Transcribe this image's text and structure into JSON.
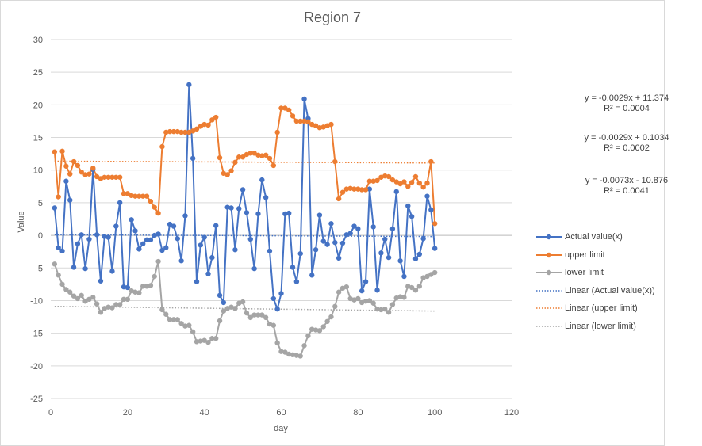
{
  "chart_data": {
    "type": "line",
    "title": "Region 7",
    "xlabel": "day",
    "ylabel": "Value",
    "xlim": [
      0,
      120
    ],
    "ylim": [
      -25,
      30
    ],
    "x_ticks": [
      0,
      20,
      40,
      60,
      80,
      100,
      120
    ],
    "y_ticks": [
      -25,
      -20,
      -15,
      -10,
      -5,
      0,
      5,
      10,
      15,
      20,
      25,
      30
    ],
    "grid": true,
    "legend_position": "right",
    "x": [
      1,
      2,
      3,
      4,
      5,
      6,
      7,
      8,
      9,
      10,
      11,
      12,
      13,
      14,
      15,
      16,
      17,
      18,
      19,
      20,
      21,
      22,
      23,
      24,
      25,
      26,
      27,
      28,
      29,
      30,
      31,
      32,
      33,
      34,
      35,
      36,
      37,
      38,
      39,
      40,
      41,
      42,
      43,
      44,
      45,
      46,
      47,
      48,
      49,
      50,
      51,
      52,
      53,
      54,
      55,
      56,
      57,
      58,
      59,
      60,
      61,
      62,
      63,
      64,
      65,
      66,
      67,
      68,
      69,
      70,
      71,
      72,
      73,
      74,
      75,
      76,
      77,
      78,
      79,
      80,
      81,
      82,
      83,
      84,
      85,
      86,
      87,
      88,
      89,
      90,
      91,
      92,
      93,
      94,
      95,
      96,
      97,
      98,
      99,
      100
    ],
    "series": [
      {
        "name": "Actual value(x)",
        "color": "#4472c4",
        "marker": "circle",
        "values": [
          4.2,
          -1.9,
          -2.4,
          8.3,
          5.4,
          -4.9,
          -1.3,
          0.1,
          -5.1,
          -0.6,
          10.1,
          0.1,
          -7.0,
          -0.2,
          -0.3,
          -5.5,
          1.4,
          5.0,
          -7.9,
          -8.0,
          2.4,
          0.7,
          -2.1,
          -1.3,
          -0.7,
          -0.7,
          0.0,
          0.2,
          -2.3,
          -1.9,
          1.7,
          1.4,
          -0.5,
          -3.9,
          3.0,
          23.1,
          11.8,
          -7.1,
          -1.5,
          -0.3,
          -5.9,
          -3.4,
          1.5,
          -9.2,
          -10.3,
          4.3,
          4.2,
          -2.2,
          4.1,
          7.0,
          3.5,
          -0.6,
          -5.1,
          3.3,
          8.5,
          5.8,
          -2.4,
          -9.7,
          -11.3,
          -8.9,
          3.3,
          3.4,
          -4.9,
          -7.1,
          -2.8,
          20.9,
          17.9,
          -6.1,
          -2.2,
          3.1,
          -0.9,
          -1.4,
          1.8,
          -1.1,
          -3.5,
          -1.2,
          0.1,
          0.3,
          1.4,
          1.0,
          -8.5,
          -7.1,
          7.1,
          1.3,
          -8.4,
          -2.7,
          -0.6,
          -3.4,
          1.0,
          6.7,
          -3.9,
          -6.3,
          4.5,
          2.9,
          -3.6,
          -2.9,
          -0.5,
          6.0,
          3.9,
          -2.0
        ]
      },
      {
        "name": "upper limit",
        "color": "#ed7d31",
        "marker": "circle",
        "values": [
          12.8,
          5.9,
          12.9,
          10.6,
          9.4,
          11.3,
          10.7,
          9.7,
          9.3,
          9.4,
          10.3,
          9.0,
          8.7,
          8.9,
          8.9,
          8.9,
          8.9,
          8.9,
          6.4,
          6.4,
          6.1,
          6.0,
          6.0,
          6.0,
          6.0,
          5.2,
          4.3,
          3.4,
          13.6,
          15.8,
          15.9,
          15.9,
          15.9,
          15.8,
          15.8,
          15.8,
          16.0,
          16.3,
          16.7,
          17.0,
          16.9,
          17.7,
          18.1,
          11.9,
          9.5,
          9.3,
          9.9,
          11.2,
          12.0,
          12.0,
          12.4,
          12.6,
          12.6,
          12.3,
          12.2,
          12.3,
          11.8,
          10.7,
          15.8,
          19.5,
          19.5,
          19.2,
          18.3,
          17.5,
          17.5,
          17.5,
          17.4,
          17.0,
          16.8,
          16.5,
          16.6,
          16.8,
          17.0,
          11.3,
          5.6,
          6.6,
          7.1,
          7.2,
          7.1,
          7.1,
          7.0,
          7.0,
          8.3,
          8.3,
          8.4,
          8.9,
          9.1,
          9.0,
          8.5,
          8.2,
          7.9,
          8.2,
          7.5,
          8.1,
          9.0,
          8.0,
          7.4,
          8.0,
          11.3,
          1.8
        ]
      },
      {
        "name": "lower limit",
        "color": "#a5a5a5",
        "marker": "circle",
        "values": [
          -4.4,
          -6.1,
          -7.5,
          -8.3,
          -8.7,
          -9.3,
          -9.7,
          -9.2,
          -10.1,
          -9.8,
          -9.5,
          -10.5,
          -11.8,
          -11.2,
          -11.0,
          -11.1,
          -10.6,
          -10.6,
          -9.8,
          -9.8,
          -8.5,
          -8.7,
          -8.8,
          -7.8,
          -7.8,
          -7.7,
          -6.3,
          -4.0,
          -11.4,
          -12.1,
          -12.9,
          -12.9,
          -12.9,
          -13.5,
          -13.9,
          -13.8,
          -14.8,
          -16.3,
          -16.2,
          -16.1,
          -16.4,
          -15.8,
          -15.8,
          -13.1,
          -11.6,
          -11.2,
          -11.0,
          -11.2,
          -10.4,
          -10.2,
          -11.9,
          -12.6,
          -12.2,
          -12.2,
          -12.2,
          -12.6,
          -13.6,
          -13.8,
          -16.5,
          -17.8,
          -17.9,
          -18.2,
          -18.3,
          -18.4,
          -18.5,
          -16.9,
          -15.4,
          -14.4,
          -14.5,
          -14.6,
          -14.0,
          -13.2,
          -12.5,
          -10.9,
          -8.7,
          -8.1,
          -7.9,
          -9.7,
          -9.9,
          -9.7,
          -10.3,
          -10.1,
          -10.0,
          -10.4,
          -11.3,
          -11.4,
          -11.3,
          -11.8,
          -10.6,
          -9.6,
          -9.4,
          -9.5,
          -7.8,
          -8.0,
          -8.4,
          -7.8,
          -6.5,
          -6.3,
          -6.0,
          -5.7
        ]
      }
    ],
    "trendlines": [
      {
        "name": "Linear (Actual value(x))",
        "color": "#4472c4",
        "slope": -0.0029,
        "intercept": 0.1034,
        "equation": "y = -0.0029x + 0.1034",
        "r2": "R² = 0.0002"
      },
      {
        "name": "Linear (upper limit)",
        "color": "#ed7d31",
        "slope": -0.0029,
        "intercept": 11.374,
        "equation": "y = -0.0029x + 11.374",
        "r2": "R² = 0.0004"
      },
      {
        "name": "Linear (lower limit)",
        "color": "#a5a5a5",
        "slope": -0.0073,
        "intercept": -10.876,
        "equation": "y = -0.0073x - 10.876",
        "r2": "R² = 0.0041"
      }
    ],
    "equation_labels_order": [
      1,
      0,
      2
    ],
    "legend": [
      "Actual value(x)",
      "upper limit",
      "lower limit",
      "Linear (Actual value(x))",
      "Linear (upper limit)",
      "Linear (lower limit)"
    ]
  }
}
